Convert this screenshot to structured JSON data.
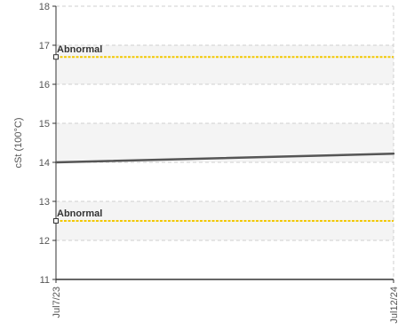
{
  "chart_data": {
    "type": "line",
    "ylabel": "cSt (100°C)",
    "ylim": [
      11,
      18
    ],
    "yticks": [
      11,
      12,
      13,
      14,
      15,
      16,
      17,
      18
    ],
    "xlim": [
      "2023-07-01",
      "2024-12-01"
    ],
    "xticks": [
      {
        "label": "Jul7/23",
        "value": "2023-07-01"
      },
      {
        "label": "Jul12/24",
        "value": "2024-12-01"
      }
    ],
    "grid": true,
    "bands": [
      [
        12,
        13
      ],
      [
        14,
        15
      ],
      [
        16,
        17
      ]
    ],
    "series": [
      {
        "color": "#555555",
        "points": [
          {
            "x": "2023-07-01",
            "y": 14.0
          },
          {
            "x": "2024-12-01",
            "y": 14.22
          }
        ]
      }
    ],
    "thresholds": [
      {
        "label": "Abnormal",
        "y": 16.7,
        "color": "#f2c800"
      },
      {
        "label": "Abnormal",
        "y": 12.5,
        "color": "#f2c800"
      }
    ]
  }
}
